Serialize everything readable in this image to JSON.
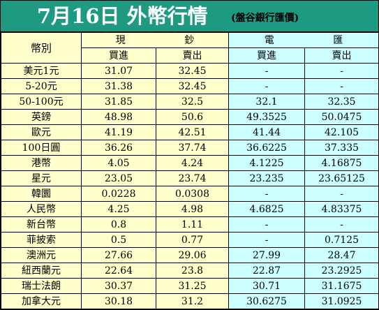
{
  "title": {
    "main": "7月16日 外幣行情",
    "source": "(盤谷銀行匯價)"
  },
  "headers": {
    "currency": "幣別",
    "cash": "現 鈔",
    "wire": "電 匯",
    "buy": "買進",
    "sell": "賣出"
  },
  "rows": [
    {
      "currency": "美元1元",
      "cash_buy": "31.07",
      "cash_sell": "32.45",
      "wire_buy": "-",
      "wire_sell": "-"
    },
    {
      "currency": "5-20元",
      "cash_buy": "31.38",
      "cash_sell": "32.45",
      "wire_buy": "-",
      "wire_sell": "-"
    },
    {
      "currency": "50-100元",
      "cash_buy": "31.85",
      "cash_sell": "32.5",
      "wire_buy": "32.1",
      "wire_sell": "32.35"
    },
    {
      "currency": "英鎊",
      "cash_buy": "48.98",
      "cash_sell": "50.6",
      "wire_buy": "49.3525",
      "wire_sell": "50.0475"
    },
    {
      "currency": "歐元",
      "cash_buy": "41.19",
      "cash_sell": "42.51",
      "wire_buy": "41.44",
      "wire_sell": "42.105"
    },
    {
      "currency": "100日圓",
      "cash_buy": "36.26",
      "cash_sell": "37.74",
      "wire_buy": "36.6225",
      "wire_sell": "37.335"
    },
    {
      "currency": "港幣",
      "cash_buy": "4.05",
      "cash_sell": "4.24",
      "wire_buy": "4.1225",
      "wire_sell": "4.16875"
    },
    {
      "currency": "星元",
      "cash_buy": "23.05",
      "cash_sell": "23.74",
      "wire_buy": "23.235",
      "wire_sell": "23.65125"
    },
    {
      "currency": "韓圜",
      "cash_buy": "0.0228",
      "cash_sell": "0.0308",
      "wire_buy": "-",
      "wire_sell": "-"
    },
    {
      "currency": "人民幣",
      "cash_buy": "4.25",
      "cash_sell": "4.98",
      "wire_buy": "4.6825",
      "wire_sell": "4.83375"
    },
    {
      "currency": "新台幣",
      "cash_buy": "0.8",
      "cash_sell": "1.11",
      "wire_buy": "-",
      "wire_sell": "-"
    },
    {
      "currency": "菲披索",
      "cash_buy": "0.5",
      "cash_sell": "0.77",
      "wire_buy": "-",
      "wire_sell": "0.7125"
    },
    {
      "currency": "澳洲元",
      "cash_buy": "27.66",
      "cash_sell": "29.06",
      "wire_buy": "27.99",
      "wire_sell": "28.47"
    },
    {
      "currency": "紐西蘭元",
      "cash_buy": "22.64",
      "cash_sell": "23.8",
      "wire_buy": "22.87",
      "wire_sell": "23.2925"
    },
    {
      "currency": "瑞士法朗",
      "cash_buy": "30.37",
      "cash_sell": "31.25",
      "wire_buy": "30.71",
      "wire_sell": "31.1675"
    },
    {
      "currency": "加拿大元",
      "cash_buy": "30.18",
      "cash_sell": "31.2",
      "wire_buy": "30.6275",
      "wire_sell": "31.0925"
    }
  ],
  "colors": {
    "title_bg": "#1f9a82",
    "title_text": "#ffffff",
    "cash_bg": "#ffffcc",
    "wire_bg": "#ccffff"
  }
}
